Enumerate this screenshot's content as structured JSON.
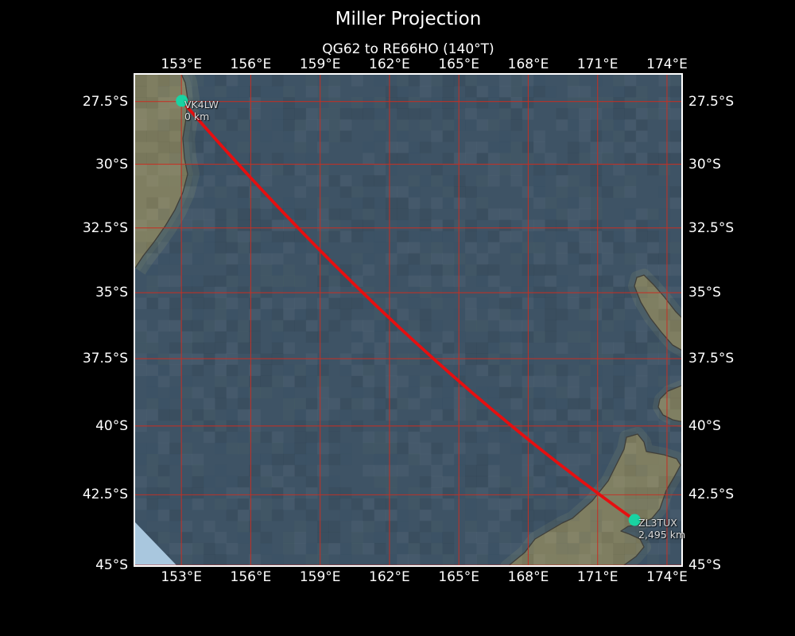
{
  "title": "Miller Projection",
  "subtitle": "QG62 to RE66HO (140°T)",
  "chart_data": {
    "type": "map",
    "projection": "Miller",
    "extent": {
      "lon_min": 151.0,
      "lon_max": 174.62,
      "lat_min": -45.0,
      "lat_max": -26.42
    },
    "lon_ticks": {
      "values": [
        153,
        156,
        159,
        162,
        165,
        168,
        171,
        174
      ],
      "labels": [
        "153°E",
        "156°E",
        "159°E",
        "162°E",
        "165°E",
        "168°E",
        "171°E",
        "174°E"
      ]
    },
    "lat_ticks": {
      "values": [
        -27.5,
        -30,
        -32.5,
        -35,
        -37.5,
        -40,
        -42.5,
        -45
      ],
      "labels": [
        "27.5°S",
        "30°S",
        "32.5°S",
        "35°S",
        "37.5°S",
        "40°S",
        "42.5°S",
        "45°S"
      ]
    },
    "route": {
      "start": {
        "callsign": "VK4LW",
        "distance": "0 km",
        "lat": -27.47,
        "lon": 153.02
      },
      "end": {
        "callsign": "ZL3TUX",
        "distance": "2,495 km",
        "lat": -43.4,
        "lon": 172.6
      }
    },
    "colors": {
      "background": "#000000",
      "ocean": "#3e5365",
      "land": "#7f7e61",
      "coastline": "#3f3e39",
      "shelf": "#74806f",
      "graticule": "#c72f23",
      "route": "#e60f10",
      "marker": "#19d3a2",
      "corner_wedge": "#a9c7de",
      "text": "#ffffff",
      "marker_label": "#dcdcdc"
    }
  }
}
